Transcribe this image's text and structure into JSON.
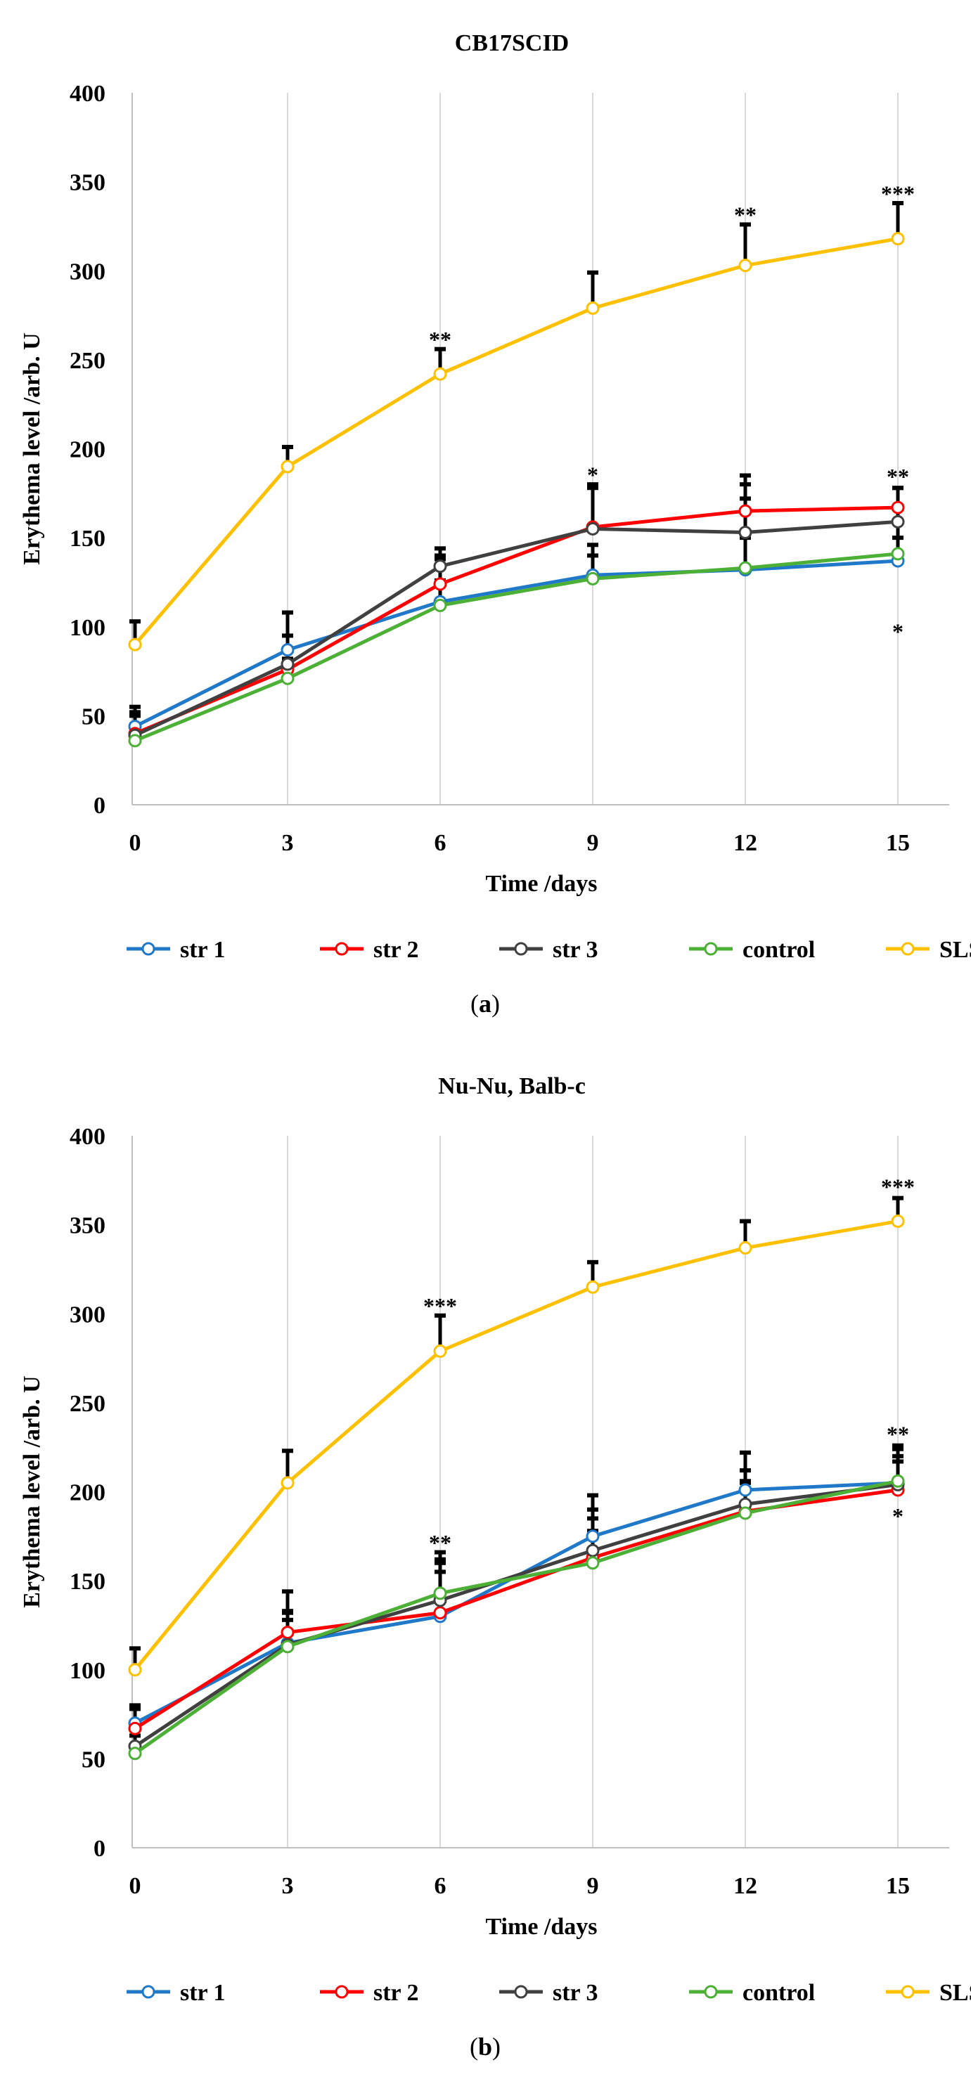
{
  "chart_data": [
    {
      "type": "line",
      "title": "CB17SCID",
      "panel_label": "a",
      "xlabel": "Time /days",
      "ylabel": "Erythema level /arb. U",
      "x": [
        0,
        3,
        6,
        9,
        12,
        15
      ],
      "xticks": [
        "0",
        "3",
        "6",
        "9",
        "12",
        "15"
      ],
      "yticks": [
        "0",
        "50",
        "100",
        "150",
        "200",
        "250",
        "300",
        "350",
        "400"
      ],
      "ylim": [
        0,
        400
      ],
      "grid": "vertical",
      "legend_position": "bottom",
      "series": [
        {
          "name": "str 1",
          "color": "#1f78c8",
          "values": [
            44,
            87,
            114,
            129,
            132,
            137
          ],
          "error_top": [
            55,
            95,
            140,
            146,
            172,
            150
          ]
        },
        {
          "name": "str 2",
          "color": "#ff0000",
          "values": [
            40,
            76,
            124,
            156,
            165,
            167
          ],
          "error_top": [
            52,
            88,
            138,
            178,
            180,
            178
          ]
        },
        {
          "name": "str 3",
          "color": "#404040",
          "values": [
            39,
            79,
            134,
            155,
            153,
            159
          ],
          "error_top": [
            50,
            108,
            144,
            180,
            185,
            178
          ]
        },
        {
          "name": "control",
          "color": "#4caf36",
          "values": [
            36,
            71,
            112,
            127,
            133,
            141
          ],
          "error_top": [
            45,
            82,
            126,
            140,
            150,
            158
          ]
        },
        {
          "name": "SLS",
          "color": "#ffc000",
          "values": [
            90,
            190,
            242,
            279,
            303,
            318
          ],
          "error_top": [
            103,
            201,
            256,
            299,
            326,
            338
          ]
        }
      ],
      "annotations": [
        {
          "text": "**",
          "x": 6,
          "y": 261
        },
        {
          "text": "**",
          "x": 12,
          "y": 331
        },
        {
          "text": "***",
          "x": 15,
          "y": 343
        },
        {
          "text": "*",
          "x": 9,
          "y": 185
        },
        {
          "text": "**",
          "x": 15,
          "y": 184
        },
        {
          "text": "*",
          "x": 15,
          "y": 97
        }
      ]
    },
    {
      "type": "line",
      "title": "Nu-Nu, Balb-c",
      "panel_label": "b",
      "xlabel": "Time /days",
      "ylabel": "Erythema level /arb. U",
      "x": [
        0,
        3,
        6,
        9,
        12,
        15
      ],
      "xticks": [
        "0",
        "3",
        "6",
        "9",
        "12",
        "15"
      ],
      "yticks": [
        "0",
        "50",
        "100",
        "150",
        "200",
        "250",
        "300",
        "350",
        "400"
      ],
      "ylim": [
        0,
        400
      ],
      "grid": "vertical",
      "legend_position": "bottom",
      "series": [
        {
          "name": "str 1",
          "color": "#1f78c8",
          "values": [
            70,
            115,
            130,
            175,
            201,
            205
          ],
          "error_top": [
            80,
            133,
            155,
            198,
            222,
            217
          ]
        },
        {
          "name": "str 2",
          "color": "#ff0000",
          "values": [
            67,
            121,
            132,
            163,
            189,
            201
          ],
          "error_top": [
            78,
            144,
            162,
            185,
            206,
            226
          ]
        },
        {
          "name": "str 3",
          "color": "#404040",
          "values": [
            57,
            114,
            139,
            167,
            193,
            204
          ],
          "error_top": [
            66,
            132,
            166,
            190,
            212,
            224
          ]
        },
        {
          "name": "control",
          "color": "#4caf36",
          "values": [
            53,
            113,
            143,
            160,
            188,
            206
          ],
          "error_top": [
            63,
            128,
            160,
            178,
            205,
            220
          ]
        },
        {
          "name": "SLS",
          "color": "#ffc000",
          "values": [
            100,
            205,
            279,
            315,
            337,
            352
          ],
          "error_top": [
            112,
            223,
            299,
            329,
            352,
            365
          ]
        }
      ],
      "annotations": [
        {
          "text": "***",
          "x": 6,
          "y": 304
        },
        {
          "text": "***",
          "x": 15,
          "y": 371
        },
        {
          "text": "**",
          "x": 6,
          "y": 171
        },
        {
          "text": "**",
          "x": 15,
          "y": 232
        },
        {
          "text": "*",
          "x": 15,
          "y": 186
        }
      ]
    }
  ]
}
